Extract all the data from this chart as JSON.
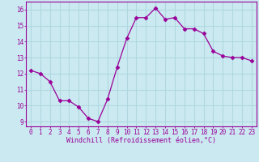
{
  "x": [
    0,
    1,
    2,
    3,
    4,
    5,
    6,
    7,
    8,
    9,
    10,
    11,
    12,
    13,
    14,
    15,
    16,
    17,
    18,
    19,
    20,
    21,
    22,
    23
  ],
  "y": [
    12.2,
    12.0,
    11.5,
    10.3,
    10.3,
    9.9,
    9.2,
    9.0,
    10.4,
    12.4,
    14.2,
    15.5,
    15.5,
    16.1,
    15.4,
    15.5,
    14.8,
    14.8,
    14.5,
    13.4,
    13.1,
    13.0,
    13.0,
    12.8
  ],
  "line_color": "#990099",
  "marker": "D",
  "marker_size": 2.5,
  "bg_color": "#cbe9f0",
  "grid_color": "#b0d8e0",
  "xlabel": "Windchill (Refroidissement éolien,°C)",
  "xlabel_color": "#990099",
  "tick_color": "#990099",
  "spine_color": "#990099",
  "xlim": [
    -0.5,
    23.5
  ],
  "ylim": [
    8.7,
    16.5
  ],
  "yticks": [
    9,
    10,
    11,
    12,
    13,
    14,
    15,
    16
  ],
  "xticks": [
    0,
    1,
    2,
    3,
    4,
    5,
    6,
    7,
    8,
    9,
    10,
    11,
    12,
    13,
    14,
    15,
    16,
    17,
    18,
    19,
    20,
    21,
    22,
    23
  ],
  "tick_fontsize": 5.5,
  "xlabel_fontsize": 6.0
}
